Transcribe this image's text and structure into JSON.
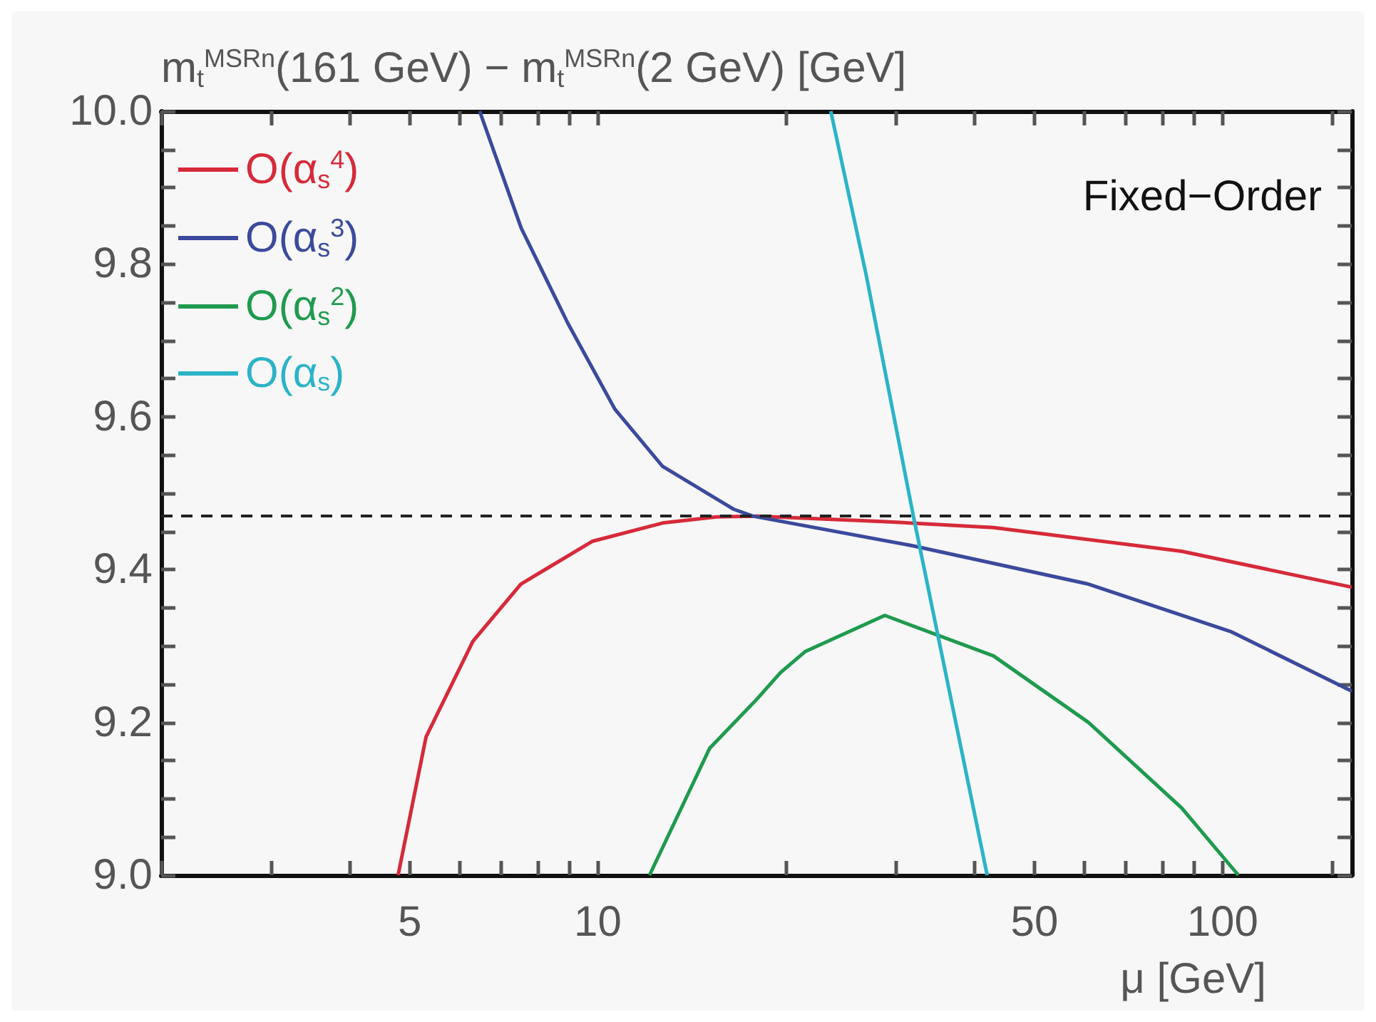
{
  "chart_data": {
    "type": "line",
    "ylabel": "m$_{t}$$^{MSRn}$(161 GeV) − m$_{t}$$^{MSRn}$(2 GeV) [GeV]",
    "xlabel": "μ [GeV]",
    "annotations": [
      "Fixed−Order"
    ],
    "log": "x",
    "xlim": [
      2,
      161
    ],
    "xticks": [
      {
        "value": 2,
        "label": null
      },
      {
        "value": 3,
        "label": null
      },
      {
        "value": 4,
        "label": null
      },
      5,
      {
        "value": 6,
        "label": null
      },
      {
        "value": 7,
        "label": null
      },
      {
        "value": 8,
        "label": null
      },
      {
        "value": 9,
        "label": null
      },
      10,
      {
        "value": 20,
        "label": null
      },
      {
        "value": 30,
        "label": null
      },
      {
        "value": 40,
        "label": null
      },
      50,
      {
        "value": 60,
        "label": null
      },
      {
        "value": 70,
        "label": null
      },
      {
        "value": 80,
        "label": null
      },
      {
        "value": 90,
        "label": null
      },
      100,
      {
        "value": 150,
        "label": null
      }
    ],
    "ylim": [
      9.0,
      10.0
    ],
    "yticks": [
      {
        "value": 9.0,
        "label": "9.0"
      },
      {
        "value": 9.05,
        "label": null
      },
      {
        "value": 9.1,
        "label": null
      },
      {
        "value": 9.15,
        "label": null
      },
      9.2,
      {
        "value": 9.25,
        "label": null
      },
      {
        "value": 9.3,
        "label": null
      },
      {
        "value": 9.35,
        "label": null
      },
      9.4,
      {
        "value": 9.45,
        "label": null
      },
      {
        "value": 9.5,
        "label": null
      },
      {
        "value": 9.55,
        "label": null
      },
      9.6,
      {
        "value": 9.65,
        "label": null
      },
      {
        "value": 9.7,
        "label": null
      },
      {
        "value": 9.75,
        "label": null
      },
      9.8,
      {
        "value": 9.85,
        "label": null
      },
      {
        "value": 9.9,
        "label": null
      },
      {
        "value": 9.95,
        "label": null
      },
      {
        "value": 10.0,
        "label": "10.0"
      }
    ],
    "grid": false,
    "legend": "top left",
    "line_style": "solid",
    "marker": "none",
    "ref_lines": [
      {
        "axis": "y",
        "value": 9.47,
        "color": "#222222",
        "line_style": "dashed"
      }
    ],
    "series": [
      {
        "name": "O(α$_{s}$$^{4}$)",
        "color": "#d62a3a",
        "x": [
          4.79,
          5.31,
          6.31,
          7.53,
          9.8,
          12.7,
          15.5,
          18,
          28.5,
          43,
          86,
          161
        ],
        "values": [
          9.0,
          9.181,
          9.306,
          9.381,
          9.437,
          9.461,
          9.469,
          9.47,
          9.463,
          9.455,
          9.424,
          9.377
        ]
      },
      {
        "name": "O(α$_{s}$$^{3}$)",
        "color": "#3b4a9c",
        "x": [
          6.47,
          7.54,
          8.96,
          10.65,
          12.7,
          16.5,
          17.7,
          32,
          61,
          103,
          161
        ],
        "values": [
          10.0,
          9.847,
          9.722,
          9.61,
          9.535,
          9.479,
          9.47,
          9.431,
          9.381,
          9.319,
          9.241
        ]
      },
      {
        "name": "O(α$_{s}$$^{2}$)",
        "color": "#1f9a4e",
        "x": [
          12.1,
          15.1,
          18,
          19.6,
          21.5,
          28.8,
          43,
          61,
          86,
          106
        ],
        "values": [
          9.0,
          9.166,
          9.231,
          9.265,
          9.293,
          9.34,
          9.287,
          9.2,
          9.088,
          9.0
        ]
      },
      {
        "name": "O(α$_{s}$)",
        "color": "#2bb3c8",
        "x": [
          23.6,
          26.9,
          32,
          42
        ],
        "values": [
          10.0,
          9.785,
          9.47,
          9.0
        ]
      }
    ]
  }
}
